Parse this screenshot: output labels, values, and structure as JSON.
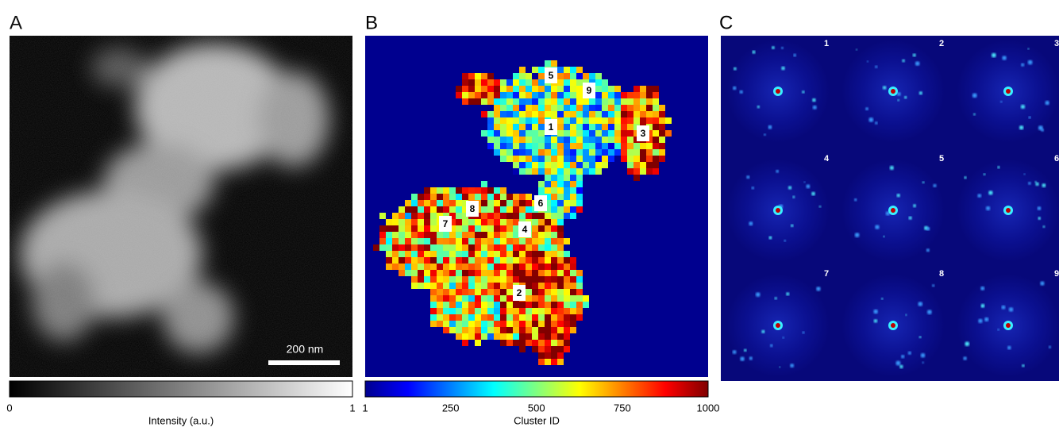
{
  "panels": [
    {
      "label": "A",
      "scale_bar": "200 nm",
      "colorbar": {
        "ticks": [
          0,
          1
        ],
        "label": "Intensity (a.u.)"
      }
    },
    {
      "label": "B",
      "cluster_labels": [
        "1",
        "2",
        "3",
        "4",
        "5",
        "6",
        "7",
        "8",
        "9"
      ],
      "colorbar": {
        "ticks": [
          1,
          250,
          500,
          750,
          1000
        ],
        "label": "Cluster ID"
      }
    },
    {
      "label": "C",
      "pattern_labels": [
        "1",
        "2",
        "3",
        "4",
        "5",
        "6",
        "7",
        "8",
        "9"
      ]
    }
  ]
}
